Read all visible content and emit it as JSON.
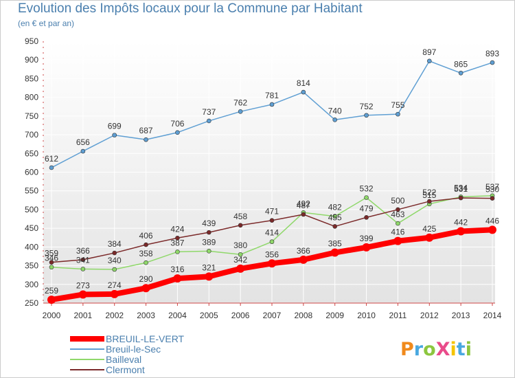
{
  "header": {
    "title": "Evolution des Impôts locaux pour la Commune par Habitant",
    "subtitle": "(en € et par an)"
  },
  "logo": {
    "text": "ProXiti"
  },
  "colors": {
    "frame": "#cccccc",
    "plot_bg_top": "#ffffff",
    "plot_bg_bottom": "#e3e3e3",
    "grid": "#ffffff",
    "text": "#4a7fae"
  },
  "chart_data": {
    "type": "line",
    "title": "Evolution des Impôts locaux pour la Commune par Habitant",
    "subtitle": "(en € et par an)",
    "xlabel": "",
    "ylabel": "",
    "x": [
      2000,
      2001,
      2002,
      2003,
      2004,
      2005,
      2006,
      2007,
      2008,
      2009,
      2010,
      2011,
      2012,
      2013,
      2014
    ],
    "ylim": [
      250,
      950
    ],
    "yticks": [
      250,
      300,
      350,
      400,
      450,
      500,
      550,
      600,
      650,
      700,
      750,
      800,
      850,
      900,
      950
    ],
    "grid": true,
    "legend_position": "bottom-left",
    "series": [
      {
        "name": "BREUIL-LE-VERT",
        "color": "#ff0000",
        "values": [
          259,
          273,
          274,
          290,
          316,
          321,
          342,
          356,
          366,
          385,
          399,
          416,
          425,
          442,
          446
        ],
        "labels": [
          "259",
          "273",
          "274",
          "290",
          "316",
          "321",
          "342",
          "356",
          "366",
          "385",
          "399",
          "416",
          "425",
          "442",
          "446"
        ]
      },
      {
        "name": "Breuil-le-Sec",
        "color": "#5f9fd3",
        "values": [
          612,
          656,
          699,
          687,
          706,
          737,
          762,
          781,
          814,
          740,
          752,
          755,
          897,
          865,
          893
        ],
        "labels": [
          "612",
          "656",
          "699",
          "687",
          "706",
          "737",
          "762",
          "781",
          "814",
          "740",
          "752",
          "755",
          "897",
          "865",
          "893"
        ]
      },
      {
        "name": "Bailleval",
        "color": "#8fd86a",
        "values": [
          346,
          341,
          340,
          358,
          387,
          389,
          380,
          414,
          492,
          482,
          532,
          463,
          515,
          534,
          537
        ],
        "labels": [
          "346",
          "341",
          "340",
          "358",
          "387",
          "389",
          "380",
          "414",
          "492",
          "482",
          "532",
          "463",
          "515",
          "534",
          "537"
        ]
      },
      {
        "name": "Clermont",
        "color": "#7b2a2a",
        "values": [
          359,
          366,
          384,
          406,
          424,
          439,
          458,
          471,
          487,
          455,
          479,
          500,
          522,
          531,
          530
        ],
        "labels": [
          "359",
          "366",
          "384",
          "406",
          "424",
          "439",
          "458",
          "471",
          "487",
          "455",
          "479",
          "500",
          "522",
          "531",
          "530"
        ]
      }
    ]
  }
}
